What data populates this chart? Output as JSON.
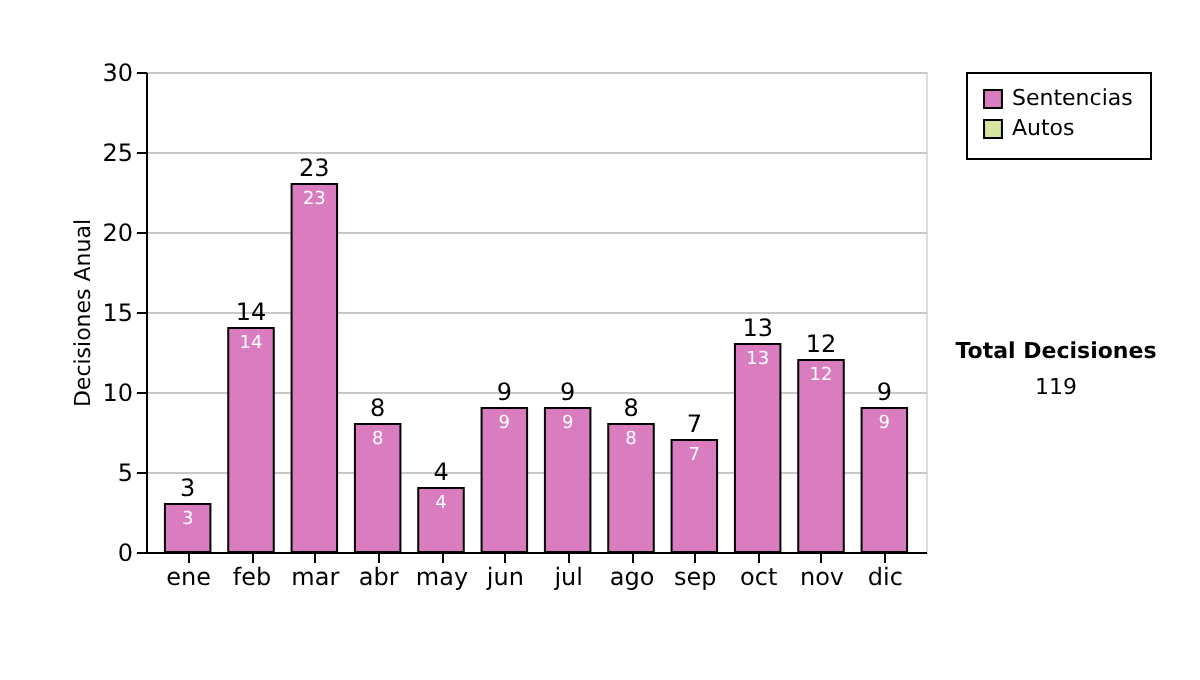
{
  "chart_data": {
    "type": "bar",
    "ylabel": "Decisiones Anual",
    "categories": [
      "ene",
      "feb",
      "mar",
      "abr",
      "may",
      "jun",
      "jul",
      "ago",
      "sep",
      "oct",
      "nov",
      "dic"
    ],
    "series": [
      {
        "name": "Sentencias",
        "color": "#d97dc0",
        "values": [
          3,
          14,
          23,
          8,
          4,
          9,
          9,
          8,
          7,
          13,
          12,
          9
        ],
        "value_labels": [
          "3",
          "14",
          "23",
          "8",
          "4",
          "9",
          "9",
          "8",
          "7",
          "13",
          "12",
          "9"
        ]
      },
      {
        "name": "Autos",
        "color": "#d6e6a0",
        "values": [
          0,
          0,
          0,
          0,
          0,
          0,
          0,
          0,
          0,
          0,
          0,
          0
        ]
      }
    ],
    "stacked": true,
    "totals": [
      "3",
      "14",
      "23",
      "8",
      "4",
      "9",
      "9",
      "8",
      "7",
      "13",
      "12",
      "9"
    ],
    "ylim": [
      0,
      30
    ],
    "yticks": [
      0,
      5,
      10,
      15,
      20,
      25,
      30
    ],
    "grid": "y",
    "legend": "right",
    "annotations": [
      "Total Decisiones",
      "119"
    ]
  }
}
